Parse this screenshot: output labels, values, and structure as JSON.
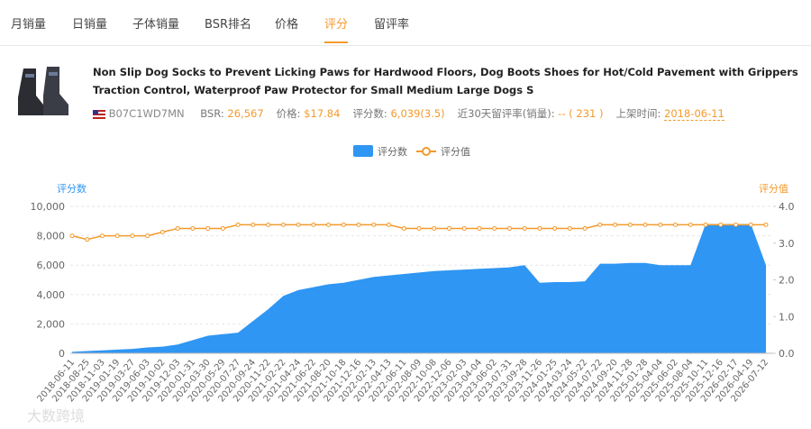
{
  "tabs": [
    "月销量",
    "日销量",
    "子体销量",
    "BSR排名",
    "价格",
    "评分",
    "留评率"
  ],
  "active_tab": 5,
  "product": {
    "title": "Non Slip Dog Socks to Prevent Licking Paws for Hardwood Floors, Dog Boots Shoes for Hot/Cold Pavement with Grippers Traction Control, Waterproof Paw Protector for Small Medium Large Dogs S",
    "asin": "B07C1WD7MN",
    "fields": [
      {
        "label": "BSR:",
        "value": "26,567"
      },
      {
        "label": "价格:",
        "value": "$17.84"
      },
      {
        "label": "评分数:",
        "value": "6,039(3.5)"
      },
      {
        "label": "近30天留评率(销量):",
        "value": "-- ( 231 )"
      },
      {
        "label": "上架时间:",
        "value": "2018-06-11"
      }
    ]
  },
  "watermark": "大数跨境",
  "chart_data": {
    "type": "combo",
    "ylabel": "评分数",
    "y2label": "评分值",
    "categories": [
      "2018-06-11",
      "2018-08-25",
      "2018-11-03",
      "2019-01-19",
      "2019-03-27",
      "2019-06-03",
      "2019-10-02",
      "2019-12-03",
      "2020-01-31",
      "2020-03-30",
      "2020-05-29",
      "2020-07-27",
      "2020-09-24",
      "2020-11-22",
      "2021-02-22",
      "2021-04-24",
      "2021-06-22",
      "2021-08-20",
      "2021-10-18",
      "2021-12-16",
      "2022-02-13",
      "2022-04-13",
      "2022-06-11",
      "2022-08-09",
      "2022-10-08",
      "2022-12-06",
      "2023-02-03",
      "2023-04-04",
      "2023-06-02",
      "2023-07-31",
      "2023-09-28",
      "2023-11-26",
      "2024-01-25",
      "2024-03-24",
      "2024-05-22",
      "2024-07-22",
      "2024-09-20",
      "2024-11-28",
      "2025-01-28",
      "2025-04-04",
      "2025-06-02",
      "2025-08-04",
      "2025-10-11",
      "2025-12-16",
      "2026-02-17",
      "2026-04-19",
      "2026-07-12"
    ],
    "series": [
      {
        "name": "评分数",
        "type": "area",
        "color": "#2f96f3",
        "values": [
          100,
          150,
          200,
          250,
          300,
          400,
          450,
          600,
          900,
          1200,
          1300,
          1400,
          2200,
          3000,
          3900,
          4300,
          4500,
          4700,
          4800,
          5000,
          5200,
          5300,
          5400,
          5500,
          5600,
          5650,
          5700,
          5750,
          5800,
          5850,
          6000,
          4800,
          4850,
          4850,
          4900,
          6100,
          6100,
          6150,
          6150,
          6000,
          6000,
          6000,
          8800,
          8800,
          8800,
          8800,
          6000
        ]
      },
      {
        "name": "评分值",
        "type": "line",
        "axis": "y2",
        "color": "#f39a2d",
        "values": [
          3.2,
          3.1,
          3.2,
          3.2,
          3.2,
          3.2,
          3.3,
          3.4,
          3.4,
          3.4,
          3.4,
          3.5,
          3.5,
          3.5,
          3.5,
          3.5,
          3.5,
          3.5,
          3.5,
          3.5,
          3.5,
          3.5,
          3.4,
          3.4,
          3.4,
          3.4,
          3.4,
          3.4,
          3.4,
          3.4,
          3.4,
          3.4,
          3.4,
          3.4,
          3.4,
          3.5,
          3.5,
          3.5,
          3.5,
          3.5,
          3.5,
          3.5,
          3.5,
          3.5,
          3.5,
          3.5,
          3.5
        ]
      }
    ],
    "ylim": [
      0,
      10000
    ],
    "yticks": [
      {
        "value": 0,
        "label": "0"
      },
      {
        "value": 2000,
        "label": "2,000"
      },
      {
        "value": 4000,
        "label": "4,000"
      },
      {
        "value": 6000,
        "label": "6,000"
      },
      {
        "value": 8000,
        "label": "8,000"
      },
      {
        "value": 10000,
        "label": "10,000"
      }
    ],
    "y2lim": [
      0,
      4
    ],
    "y2ticks": [
      {
        "value": 0,
        "label": "0.0"
      },
      {
        "value": 1,
        "label": "1.0"
      },
      {
        "value": 2,
        "label": "2.0"
      },
      {
        "value": 3,
        "label": "3.0"
      },
      {
        "value": 4,
        "label": "4.0"
      }
    ],
    "grid": true
  }
}
